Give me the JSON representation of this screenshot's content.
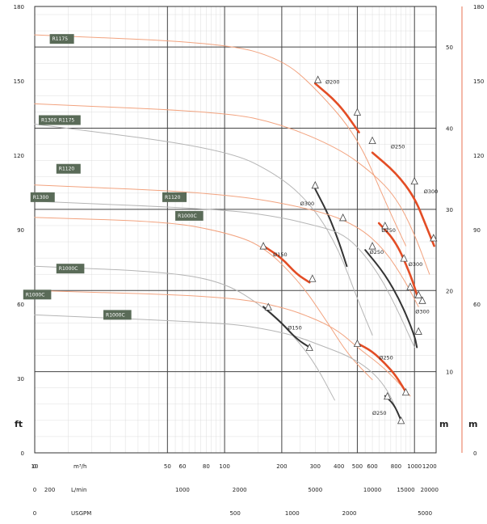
{
  "chart_data": {
    "type": "line",
    "title": "",
    "xlabel": "",
    "ylabel": "",
    "x_scale": "log",
    "x_range_m3h": [
      10,
      1300
    ],
    "y_range_ft": [
      0,
      180
    ],
    "y_range_m": [
      0,
      55
    ],
    "grid": true,
    "x_axis_rows": [
      {
        "unit": "m³/h",
        "ticks": [
          {
            "label": "0",
            "pos": null
          },
          {
            "label": "10",
            "pos": 10
          },
          {
            "label": "50",
            "pos": 50
          },
          {
            "label": "60",
            "pos": 60
          },
          {
            "label": "80",
            "pos": 80
          },
          {
            "label": "100",
            "pos": 100
          },
          {
            "label": "200",
            "pos": 200
          },
          {
            "label": "300",
            "pos": 300
          },
          {
            "label": "400",
            "pos": 400
          },
          {
            "label": "500",
            "pos": 500
          },
          {
            "label": "600",
            "pos": 600
          },
          {
            "label": "800",
            "pos": 800
          },
          {
            "label": "1000",
            "pos": 1000
          },
          {
            "label": "1200",
            "pos": 1200
          }
        ]
      },
      {
        "unit": "L/min",
        "ticks": [
          {
            "label": "0",
            "pos": null
          },
          {
            "label": "200",
            "pos": 12
          },
          {
            "label": "1000",
            "pos": 60
          },
          {
            "label": "2000",
            "pos": 120
          },
          {
            "label": "5000",
            "pos": 300
          },
          {
            "label": "10000",
            "pos": 600
          },
          {
            "label": "15000",
            "pos": 900
          },
          {
            "label": "20000",
            "pos": 1200
          }
        ]
      },
      {
        "unit": "USGPM",
        "ticks": [
          {
            "label": "0",
            "pos": null
          },
          {
            "label": "500",
            "pos": 113.6
          },
          {
            "label": "1000",
            "pos": 227
          },
          {
            "label": "2000",
            "pos": 454
          },
          {
            "label": "5000",
            "pos": 1135
          }
        ]
      }
    ],
    "y_left": {
      "unit": "ft",
      "ticks": [
        {
          "label": "0",
          "value": 0
        },
        {
          "label": "30",
          "value": 30
        },
        {
          "label": "60",
          "value": 60
        },
        {
          "label": "90",
          "value": 90
        },
        {
          "label": "120",
          "value": 120
        },
        {
          "label": "150",
          "value": 150
        },
        {
          "label": "180",
          "value": 180
        }
      ]
    },
    "y_middle": {
      "unit": "m",
      "ticks": [
        {
          "label": "10",
          "value": 10
        },
        {
          "label": "20",
          "value": 20
        },
        {
          "label": "30",
          "value": 30
        },
        {
          "label": "40",
          "value": 40
        },
        {
          "label": "50",
          "value": 50
        }
      ]
    },
    "y_right": {
      "unit": "m",
      "ticks": [
        {
          "label": "0",
          "value": 0
        },
        {
          "label": "60",
          "value": 60
        },
        {
          "label": "90",
          "value": 90
        },
        {
          "label": "120",
          "value": 120
        },
        {
          "label": "150",
          "value": 150
        },
        {
          "label": "180",
          "value": 180
        }
      ]
    },
    "model_boxes": [
      {
        "label": "R1175",
        "x": 12,
        "y": 51
      },
      {
        "label": "R1300",
        "x": 10.5,
        "y": 41
      },
      {
        "label": "R1175",
        "x": 13,
        "y": 41
      },
      {
        "label": "R1120",
        "x": 13,
        "y": 35
      },
      {
        "label": "R1300",
        "x": 9.5,
        "y": 31.5
      },
      {
        "label": "R1120",
        "x": 47,
        "y": 31.5
      },
      {
        "label": "R1000C",
        "x": 55,
        "y": 29.2
      },
      {
        "label": "R1000C",
        "x": 13,
        "y": 22.7
      },
      {
        "label": "R1000C",
        "x": 8.7,
        "y": 19.5
      },
      {
        "label": "R1000C",
        "x": 23,
        "y": 17
      }
    ],
    "series": [
      {
        "color": "#f2a37f",
        "width": 1.0,
        "points": [
          [
            10,
            51.5
          ],
          [
            100,
            50.5
          ],
          [
            200,
            48.5
          ],
          [
            300,
            45
          ],
          [
            500,
            39
          ],
          [
            700,
            31
          ],
          [
            900,
            25.5
          ]
        ]
      },
      {
        "color": "#e34d25",
        "width": 2.6,
        "points": [
          [
            300,
            45.5
          ],
          [
            400,
            43
          ],
          [
            510,
            39.5
          ]
        ]
      },
      {
        "color": "#f2a37f",
        "width": 1.0,
        "points": [
          [
            10,
            43
          ],
          [
            100,
            42
          ],
          [
            200,
            40.5
          ],
          [
            400,
            37.5
          ],
          [
            600,
            34.5
          ],
          [
            800,
            31.5
          ],
          [
            1000,
            27
          ],
          [
            1200,
            22
          ]
        ]
      },
      {
        "color": "#e34d25",
        "width": 2.6,
        "points": [
          [
            600,
            37
          ],
          [
            800,
            34.5
          ],
          [
            1000,
            31.5
          ],
          [
            1150,
            28
          ],
          [
            1270,
            25.5
          ]
        ]
      },
      {
        "color": "#b5b5b5",
        "width": 1.0,
        "points": [
          [
            10,
            40.5
          ],
          [
            100,
            37.5
          ],
          [
            200,
            34
          ],
          [
            300,
            30
          ],
          [
            400,
            25
          ],
          [
            500,
            19
          ],
          [
            600,
            14.5
          ]
        ]
      },
      {
        "color": "#333333",
        "width": 2.0,
        "points": [
          [
            300,
            32.5
          ],
          [
            350,
            29.5
          ],
          [
            400,
            26
          ],
          [
            440,
            23
          ]
        ]
      },
      {
        "color": "#f2a37f",
        "width": 1.0,
        "points": [
          [
            10,
            33
          ],
          [
            100,
            32
          ],
          [
            300,
            30
          ],
          [
            500,
            28
          ],
          [
            700,
            25
          ],
          [
            900,
            21
          ],
          [
            1050,
            18
          ]
        ]
      },
      {
        "color": "#e34d25",
        "width": 2.6,
        "points": [
          [
            650,
            28.3
          ],
          [
            800,
            26
          ],
          [
            950,
            22
          ],
          [
            1030,
            19.5
          ]
        ]
      },
      {
        "color": "#b5b5b5",
        "width": 1.0,
        "points": [
          [
            10,
            31
          ],
          [
            100,
            30
          ],
          [
            200,
            29
          ],
          [
            300,
            28
          ],
          [
            400,
            27.2
          ],
          [
            500,
            25.5
          ],
          [
            650,
            22
          ],
          [
            800,
            18
          ],
          [
            1000,
            13
          ]
        ]
      },
      {
        "color": "#333333",
        "width": 2.0,
        "points": [
          [
            550,
            25
          ],
          [
            700,
            22
          ],
          [
            850,
            18.5
          ],
          [
            1000,
            14.5
          ],
          [
            1030,
            13
          ]
        ]
      },
      {
        "color": "#f2a37f",
        "width": 1.0,
        "points": [
          [
            10,
            29
          ],
          [
            50,
            28.5
          ],
          [
            100,
            27.2
          ],
          [
            160,
            25.5
          ],
          [
            250,
            21
          ],
          [
            350,
            16
          ],
          [
            450,
            12
          ],
          [
            600,
            9
          ]
        ]
      },
      {
        "color": "#e34d25",
        "width": 2.6,
        "points": [
          [
            160,
            25.5
          ],
          [
            200,
            24
          ],
          [
            240,
            22
          ],
          [
            280,
            21
          ]
        ]
      },
      {
        "color": "#b5b5b5",
        "width": 1.0,
        "points": [
          [
            10,
            23
          ],
          [
            50,
            22.3
          ],
          [
            100,
            21
          ],
          [
            160,
            18
          ],
          [
            230,
            14.5
          ],
          [
            300,
            11
          ],
          [
            380,
            6.5
          ]
        ]
      },
      {
        "color": "#f2a37f",
        "width": 1.0,
        "points": [
          [
            10,
            20
          ],
          [
            100,
            19.3
          ],
          [
            200,
            18
          ],
          [
            300,
            16.5
          ],
          [
            400,
            15
          ],
          [
            500,
            13
          ],
          [
            650,
            11
          ],
          [
            800,
            9
          ],
          [
            950,
            7
          ]
        ]
      },
      {
        "color": "#e34d25",
        "width": 2.6,
        "points": [
          [
            500,
            13.5
          ],
          [
            600,
            12.5
          ],
          [
            700,
            11
          ],
          [
            800,
            9.5
          ],
          [
            900,
            7.5
          ]
        ]
      },
      {
        "color": "#b5b5b5",
        "width": 1.0,
        "points": [
          [
            10,
            17
          ],
          [
            100,
            16
          ],
          [
            160,
            15.3
          ],
          [
            230,
            14.5
          ],
          [
            300,
            13.5
          ],
          [
            500,
            11.5
          ],
          [
            700,
            8.5
          ],
          [
            850,
            4
          ]
        ]
      },
      {
        "color": "#333333",
        "width": 2.0,
        "points": [
          [
            160,
            18
          ],
          [
            200,
            16
          ],
          [
            240,
            14
          ],
          [
            280,
            13
          ]
        ]
      },
      {
        "color": "#333333",
        "width": 2.0,
        "points": [
          [
            700,
            7
          ],
          [
            780,
            6
          ],
          [
            850,
            4
          ]
        ]
      }
    ],
    "markers": [
      [
        310,
        46
      ],
      [
        500,
        42
      ],
      [
        600,
        38.5
      ],
      [
        1000,
        33.5
      ],
      [
        1260,
        26.5
      ],
      [
        300,
        33
      ],
      [
        420,
        29
      ],
      [
        600,
        25.5
      ],
      [
        700,
        28
      ],
      [
        880,
        24
      ],
      [
        950,
        20.5
      ],
      [
        1050,
        19.5
      ],
      [
        1100,
        18.8
      ],
      [
        1050,
        15
      ],
      [
        160,
        25.5
      ],
      [
        290,
        21.5
      ],
      [
        170,
        18
      ],
      [
        280,
        13
      ],
      [
        500,
        13.5
      ],
      [
        900,
        7.5
      ],
      [
        720,
        7
      ],
      [
        850,
        4
      ]
    ],
    "curve_labels": [
      {
        "label": "Ø200",
        "x": 340,
        "y": 45.5
      },
      {
        "label": "Ø250",
        "x": 750,
        "y": 37.5
      },
      {
        "label": "Ø300",
        "x": 1120,
        "y": 32
      },
      {
        "label": "Ø300",
        "x": 250,
        "y": 30.5
      },
      {
        "label": "Ø250",
        "x": 670,
        "y": 27.2
      },
      {
        "label": "Ø250",
        "x": 580,
        "y": 24.5
      },
      {
        "label": "Ø300",
        "x": 930,
        "y": 23
      },
      {
        "label": "Ø300",
        "x": 1010,
        "y": 17.2
      },
      {
        "label": "Ø150",
        "x": 180,
        "y": 24.2
      },
      {
        "label": "Ø150",
        "x": 215,
        "y": 15.2
      },
      {
        "label": "Ø250",
        "x": 650,
        "y": 11.5
      },
      {
        "label": "Ø250",
        "x": 600,
        "y": 4.7
      }
    ]
  }
}
